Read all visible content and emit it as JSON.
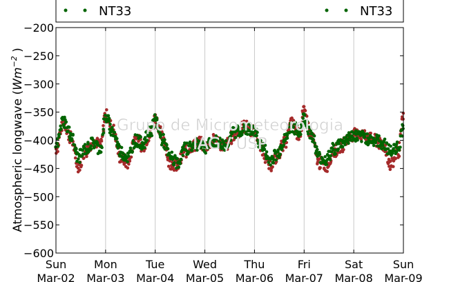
{
  "chart_data": {
    "type": "scatter",
    "ylabel": "Atmospheric longwave",
    "ylabel_unit_base": "Wm",
    "ylabel_unit_exp": "−2",
    "ylim": [
      -600,
      -200
    ],
    "yticks": [
      -200,
      -250,
      -300,
      -350,
      -400,
      -450,
      -500,
      -550,
      -600
    ],
    "ytick_labels": [
      "−200",
      "−250",
      "−300",
      "−350",
      "−400",
      "−450",
      "−500",
      "−550",
      "−600"
    ],
    "xlim": [
      "2014-03-02",
      "2014-03-09"
    ],
    "xticks": [
      {
        "day": "Sun",
        "date": "Mar-02"
      },
      {
        "day": "Mon",
        "date": "Mar-03"
      },
      {
        "day": "Tue",
        "date": "Mar-04"
      },
      {
        "day": "Wed",
        "date": "Mar-05"
      },
      {
        "day": "Thu",
        "date": "Mar-06"
      },
      {
        "day": "Fri",
        "date": "Mar-07"
      },
      {
        "day": "Sat",
        "date": "Mar-08"
      },
      {
        "day": "Sun",
        "date": "Mar-09"
      }
    ],
    "grid": "vertical",
    "legend": [
      {
        "name": "NT33",
        "placement": "top-left"
      },
      {
        "name": "NT33",
        "placement": "top-right"
      }
    ],
    "series": [
      {
        "name": "NT33",
        "color": "#a52a2a",
        "x_days": [
          0.0,
          0.15,
          0.3,
          0.45,
          0.6,
          0.75,
          0.9,
          1.0,
          1.15,
          1.3,
          1.45,
          1.6,
          1.75,
          1.9,
          2.0,
          2.15,
          2.3,
          2.45,
          2.6,
          2.75,
          2.9,
          3.0,
          3.2,
          3.4,
          3.6,
          3.8,
          4.0,
          4.15,
          4.3,
          4.45,
          4.6,
          4.75,
          4.9,
          5.0,
          5.15,
          5.3,
          5.45,
          5.6,
          5.75,
          5.9,
          6.0,
          6.2,
          6.4,
          6.6,
          6.75,
          6.9,
          7.0
        ],
        "y": [
          -415,
          -370,
          -395,
          -445,
          -420,
          -400,
          -410,
          -355,
          -380,
          -430,
          -440,
          -395,
          -410,
          -390,
          -360,
          -395,
          -440,
          -445,
          -420,
          -410,
          -405,
          -410,
          -400,
          -410,
          -390,
          -375,
          -385,
          -415,
          -445,
          -430,
          -405,
          -370,
          -390,
          -350,
          -395,
          -440,
          -445,
          -420,
          -410,
          -395,
          -390,
          -390,
          -400,
          -410,
          -445,
          -420,
          -360
        ]
      },
      {
        "name": "NT33",
        "color": "#006400",
        "x_days": [
          0.0,
          0.15,
          0.3,
          0.45,
          0.6,
          0.75,
          0.9,
          1.0,
          1.15,
          1.3,
          1.45,
          1.6,
          1.75,
          1.9,
          2.0,
          2.15,
          2.3,
          2.45,
          2.6,
          2.75,
          2.9,
          3.0,
          3.2,
          3.4,
          3.6,
          3.8,
          4.0,
          4.15,
          4.3,
          4.45,
          4.6,
          4.75,
          4.9,
          5.0,
          5.15,
          5.3,
          5.45,
          5.6,
          5.75,
          5.9,
          6.0,
          6.2,
          6.4,
          6.6,
          6.75,
          6.9,
          7.0
        ],
        "y": [
          -410,
          -365,
          -390,
          -430,
          -415,
          -405,
          -415,
          -360,
          -385,
          -420,
          -430,
          -400,
          -405,
          -385,
          -365,
          -400,
          -430,
          -440,
          -415,
          -410,
          -405,
          -412,
          -402,
          -408,
          -385,
          -380,
          -385,
          -410,
          -435,
          -425,
          -400,
          -375,
          -385,
          -360,
          -390,
          -430,
          -435,
          -415,
          -405,
          -395,
          -392,
          -395,
          -400,
          -405,
          -420,
          -410,
          -375
        ]
      }
    ]
  },
  "watermark": {
    "line1": "Grupo de Micrometeorologia",
    "line2": "IAG / USP"
  }
}
